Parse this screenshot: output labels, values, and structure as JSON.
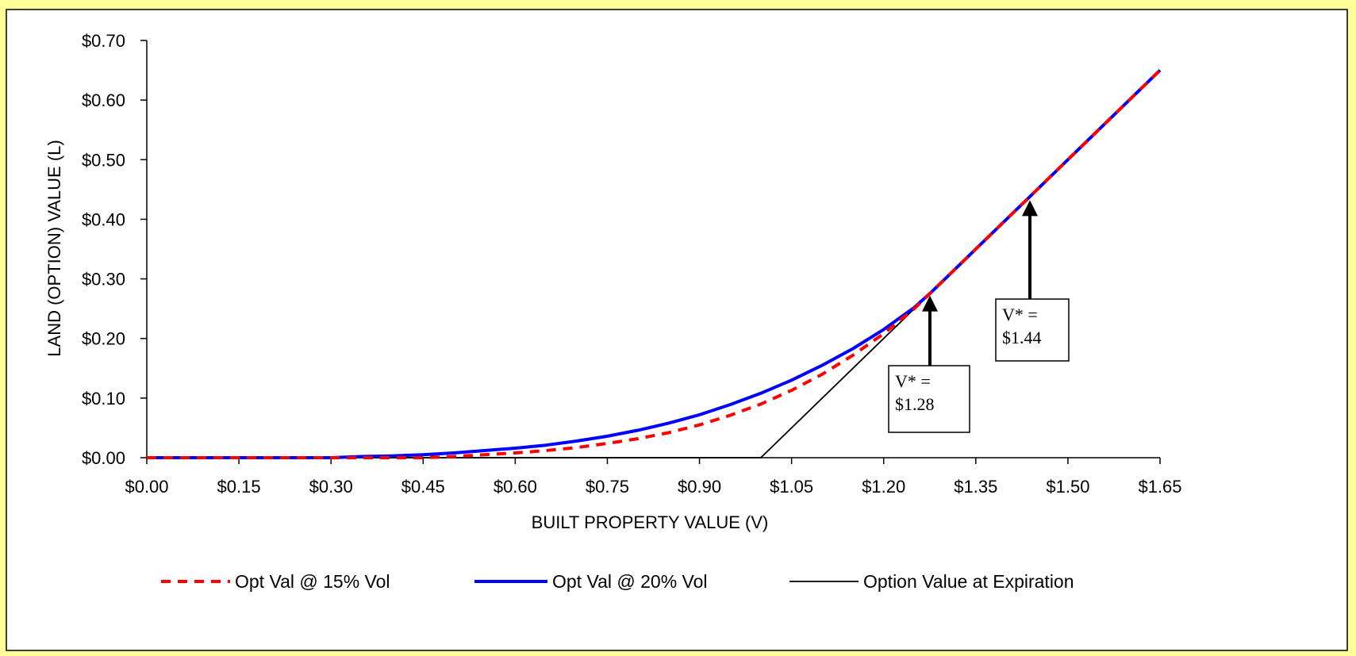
{
  "chart_data": {
    "type": "line",
    "title": "",
    "xlabel": "BUILT PROPERTY VALUE (V)",
    "ylabel": "LAND (OPTION) VALUE (L)",
    "xlim": [
      0,
      1.65
    ],
    "ylim": [
      0,
      0.7
    ],
    "x_ticks": [
      "$0.00",
      "$0.15",
      "$0.30",
      "$0.45",
      "$0.60",
      "$0.75",
      "$0.90",
      "$1.05",
      "$1.20",
      "$1.35",
      "$1.50",
      "$1.65"
    ],
    "y_ticks": [
      "$0.00",
      "$0.10",
      "$0.20",
      "$0.30",
      "$0.40",
      "$0.50",
      "$0.60",
      "$0.70"
    ],
    "grid": false,
    "legend_position": "bottom",
    "series": [
      {
        "name": "Opt Val @ 15% Vol",
        "color": "#ff0000",
        "style": "dashed",
        "x": [
          0,
          0.45,
          0.5,
          0.55,
          0.6,
          0.65,
          0.7,
          0.75,
          0.8,
          0.85,
          0.9,
          0.95,
          1.0,
          1.05,
          1.1,
          1.15,
          1.2,
          1.25,
          1.28,
          1.3,
          1.4,
          1.44,
          1.5,
          1.6,
          1.65
        ],
        "values": [
          0,
          0,
          0.002,
          0.005,
          0.008,
          0.012,
          0.017,
          0.024,
          0.032,
          0.042,
          0.055,
          0.071,
          0.09,
          0.113,
          0.14,
          0.172,
          0.208,
          0.25,
          0.28,
          0.3,
          0.4,
          0.44,
          0.5,
          0.6,
          0.65
        ]
      },
      {
        "name": "Opt Val @ 20% Vol",
        "color": "#0000ff",
        "style": "solid",
        "x": [
          0,
          0.3,
          0.35,
          0.4,
          0.45,
          0.5,
          0.55,
          0.6,
          0.65,
          0.7,
          0.75,
          0.8,
          0.85,
          0.9,
          0.95,
          1.0,
          1.05,
          1.1,
          1.15,
          1.2,
          1.25,
          1.28,
          1.3,
          1.4,
          1.44,
          1.5,
          1.6,
          1.65
        ],
        "values": [
          0,
          0,
          0.002,
          0.003,
          0.005,
          0.008,
          0.012,
          0.016,
          0.021,
          0.028,
          0.036,
          0.046,
          0.058,
          0.072,
          0.089,
          0.108,
          0.13,
          0.155,
          0.183,
          0.215,
          0.252,
          0.28,
          0.3,
          0.4,
          0.44,
          0.5,
          0.6,
          0.65
        ]
      },
      {
        "name": "Option Value at Expiration",
        "color": "#000000",
        "style": "solid",
        "x": [
          0,
          1.0,
          1.65
        ],
        "values": [
          0,
          0,
          0.65
        ]
      }
    ],
    "annotations": [
      {
        "line1": "V* =",
        "line2": "$1.28",
        "x": 1.28,
        "y": 0.28
      },
      {
        "line1": "V* =",
        "line2": "$1.44",
        "x": 1.44,
        "y": 0.44
      }
    ]
  }
}
